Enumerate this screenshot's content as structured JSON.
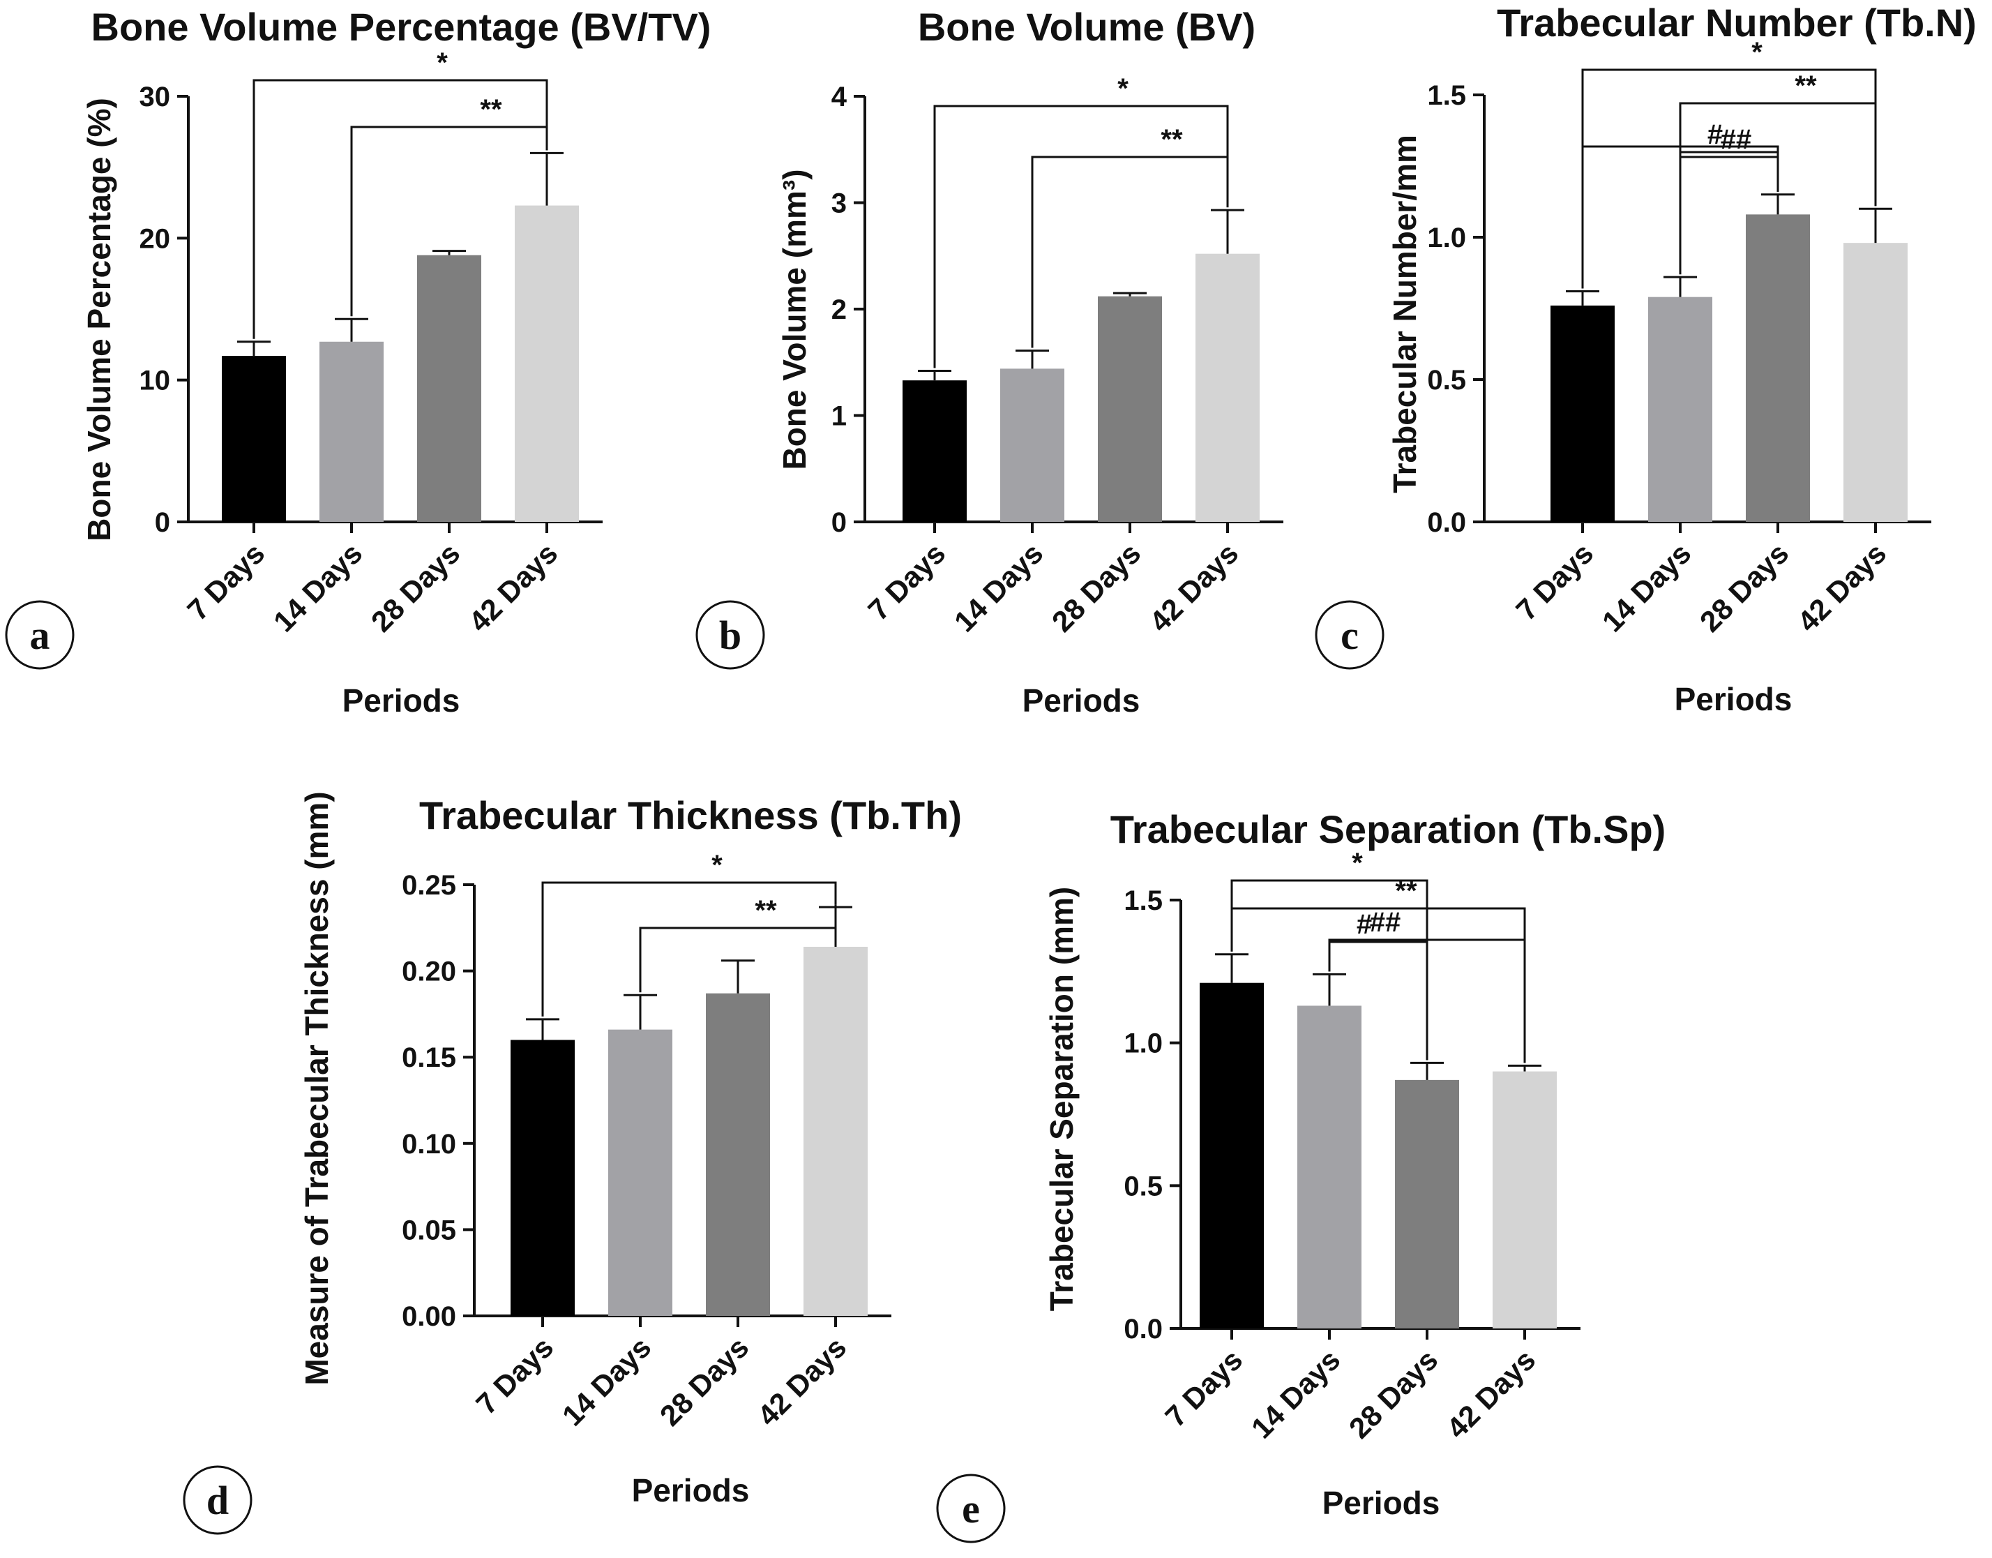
{
  "panels": [
    {
      "letter": "a",
      "title": "Bone Volume Percentage (BV/TV)",
      "xlabel": "Periods",
      "ylabel": "Bone Volume Percentage (%)"
    },
    {
      "letter": "b",
      "title": "Bone Volume (BV)",
      "xlabel": "Periods",
      "ylabel": "Bone Volume (mm³)"
    },
    {
      "letter": "c",
      "title": "Trabecular Number (Tb.N)",
      "xlabel": "Periods",
      "ylabel": "Trabecular Number/mm"
    },
    {
      "letter": "d",
      "title": "Trabecular Thickness (Tb.Th)",
      "xlabel": "Periods",
      "ylabel": "Measure of Trabecular Thickness (mm)"
    },
    {
      "letter": "e",
      "title": "Trabecular Separation (Tb.Sp)",
      "xlabel": "Periods",
      "ylabel": "Trabecular Separation (mm)"
    }
  ],
  "chart_data": [
    {
      "type": "bar",
      "title": "Bone Volume Percentage (BV/TV)",
      "xlabel": "Periods",
      "ylabel": "Bone Volume Percentage (%)",
      "categories": [
        "7 Days",
        "14 Days",
        "28 Days",
        "42 Days"
      ],
      "values": [
        11.7,
        12.7,
        18.8,
        22.3
      ],
      "errors": [
        1.0,
        1.6,
        0.3,
        3.7
      ],
      "ylim": [
        0,
        30
      ],
      "yticks": [
        "0",
        "10",
        "20",
        "30"
      ],
      "colors": [
        "#000000",
        "#a2a2a6",
        "#7e7e7e",
        "#d4d4d4"
      ],
      "significance": [
        {
          "from": 0,
          "to": 3,
          "label": "*"
        },
        {
          "from": 1,
          "to": 3,
          "label": "**"
        }
      ]
    },
    {
      "type": "bar",
      "title": "Bone Volume (BV)",
      "xlabel": "Periods",
      "ylabel": "Bone Volume (mm³)",
      "categories": [
        "7 Days",
        "14 Days",
        "28 Days",
        "42 Days"
      ],
      "values": [
        1.33,
        1.44,
        2.12,
        2.52
      ],
      "errors": [
        0.09,
        0.17,
        0.03,
        0.41
      ],
      "ylim": [
        0,
        4
      ],
      "yticks": [
        "0",
        "1",
        "2",
        "3",
        "4"
      ],
      "colors": [
        "#000000",
        "#a2a2a6",
        "#7e7e7e",
        "#d4d4d4"
      ],
      "significance": [
        {
          "from": 0,
          "to": 3,
          "label": "*"
        },
        {
          "from": 1,
          "to": 3,
          "label": "**"
        }
      ]
    },
    {
      "type": "bar",
      "title": "Trabecular Number (Tb.N)",
      "xlabel": "Periods",
      "ylabel": "Trabecular Number/mm",
      "categories": [
        "7 Days",
        "14 Days",
        "28 Days",
        "42 Days"
      ],
      "values": [
        0.76,
        0.79,
        1.08,
        0.98
      ],
      "errors": [
        0.05,
        0.07,
        0.07,
        0.12
      ],
      "ylim": [
        0,
        1.5
      ],
      "yticks": [
        "0.0",
        "0.5",
        "1.0",
        "1.5"
      ],
      "colors": [
        "#000000",
        "#a2a2a6",
        "#7e7e7e",
        "#d4d4d4"
      ],
      "significance": [
        {
          "from": 0,
          "to": 3,
          "label": "*"
        },
        {
          "from": 1,
          "to": 3,
          "label": "**"
        },
        {
          "from": 0,
          "to": 2,
          "label": ""
        },
        {
          "from": 1,
          "to": 2,
          "label": "#"
        },
        {
          "from": 1,
          "to": 2,
          "label": "##"
        }
      ]
    },
    {
      "type": "bar",
      "title": "Trabecular Thickness (Tb.Th)",
      "xlabel": "Periods",
      "ylabel": "Measure of Trabecular Thickness (mm)",
      "categories": [
        "7 Days",
        "14 Days",
        "28 Days",
        "42 Days"
      ],
      "values": [
        0.16,
        0.166,
        0.187,
        0.214
      ],
      "errors": [
        0.012,
        0.02,
        0.019,
        0.023
      ],
      "ylim": [
        0,
        0.25
      ],
      "yticks": [
        "0.00",
        "0.05",
        "0.10",
        "0.15",
        "0.20",
        "0.25"
      ],
      "colors": [
        "#000000",
        "#a2a2a6",
        "#7e7e7e",
        "#d4d4d4"
      ],
      "significance": [
        {
          "from": 0,
          "to": 3,
          "label": "*"
        },
        {
          "from": 1,
          "to": 3,
          "label": "**"
        }
      ]
    },
    {
      "type": "bar",
      "title": "Trabecular Separation (Tb.Sp)",
      "xlabel": "Periods",
      "ylabel": "Trabecular Separation (mm)",
      "categories": [
        "7 Days",
        "14 Days",
        "28 Days",
        "42 Days"
      ],
      "values": [
        1.21,
        1.13,
        0.87,
        0.9
      ],
      "errors": [
        0.1,
        0.11,
        0.06,
        0.02
      ],
      "ylim": [
        0,
        1.5
      ],
      "yticks": [
        "0.0",
        "0.5",
        "1.0",
        "1.5"
      ],
      "colors": [
        "#000000",
        "#a2a2a6",
        "#7e7e7e",
        "#d4d4d4"
      ],
      "significance": [
        {
          "from": 0,
          "to": 2,
          "label": "*"
        },
        {
          "from": 0,
          "to": 3,
          "label": "**"
        },
        {
          "from": 1,
          "to": 3,
          "label": "##"
        },
        {
          "from": 1,
          "to": 2,
          "label": "#"
        }
      ]
    }
  ]
}
